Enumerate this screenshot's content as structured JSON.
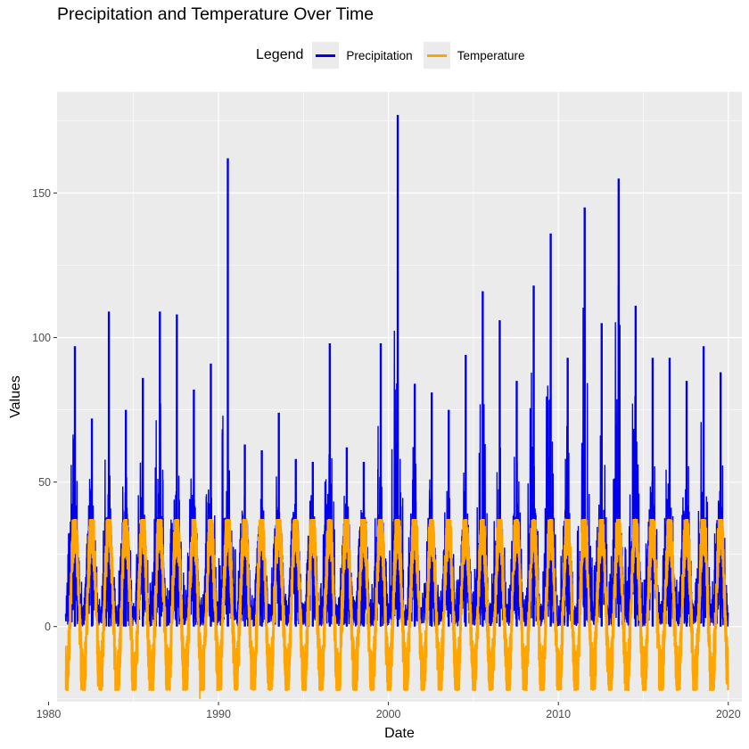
{
  "chart_data": {
    "type": "line",
    "title": "Precipitation and Temperature Over Time",
    "xlabel": "Date",
    "ylabel": "Values",
    "legend_title": "Legend",
    "legend_position": "top",
    "grid": true,
    "xlim": [
      1980.5,
      2020.8
    ],
    "ylim": [
      -26,
      185
    ],
    "x_ticks": [
      1980,
      1990,
      2000,
      2010,
      2020
    ],
    "y_ticks": [
      0,
      50,
      100,
      150
    ],
    "x_range": [
      1981.0,
      2020.0
    ],
    "series": [
      {
        "name": "Precipitation",
        "color": "#0000ee",
        "annual_peaks": [
          {
            "year": 1981,
            "peak": 97
          },
          {
            "year": 1982,
            "peak": 72
          },
          {
            "year": 1983,
            "peak": 109
          },
          {
            "year": 1984,
            "peak": 75
          },
          {
            "year": 1985,
            "peak": 86
          },
          {
            "year": 1986,
            "peak": 109
          },
          {
            "year": 1987,
            "peak": 108
          },
          {
            "year": 1988,
            "peak": 82
          },
          {
            "year": 1989,
            "peak": 91
          },
          {
            "year": 1990,
            "peak": 162
          },
          {
            "year": 1991,
            "peak": 63
          },
          {
            "year": 1992,
            "peak": 61
          },
          {
            "year": 1993,
            "peak": 74
          },
          {
            "year": 1994,
            "peak": 58
          },
          {
            "year": 1995,
            "peak": 57
          },
          {
            "year": 1996,
            "peak": 98
          },
          {
            "year": 1997,
            "peak": 62
          },
          {
            "year": 1998,
            "peak": 57
          },
          {
            "year": 1999,
            "peak": 98
          },
          {
            "year": 2000,
            "peak": 177
          },
          {
            "year": 2001,
            "peak": 84
          },
          {
            "year": 2002,
            "peak": 81
          },
          {
            "year": 2003,
            "peak": 75
          },
          {
            "year": 2004,
            "peak": 94
          },
          {
            "year": 2005,
            "peak": 116
          },
          {
            "year": 2006,
            "peak": 106
          },
          {
            "year": 2007,
            "peak": 85
          },
          {
            "year": 2008,
            "peak": 118
          },
          {
            "year": 2009,
            "peak": 136
          },
          {
            "year": 2010,
            "peak": 93
          },
          {
            "year": 2011,
            "peak": 145
          },
          {
            "year": 2012,
            "peak": 105
          },
          {
            "year": 2013,
            "peak": 155
          },
          {
            "year": 2014,
            "peak": 111
          },
          {
            "year": 2015,
            "peak": 93
          },
          {
            "year": 2016,
            "peak": 93
          },
          {
            "year": 2017,
            "peak": 85
          },
          {
            "year": 2018,
            "peak": 97
          },
          {
            "year": 2019,
            "peak": 88
          }
        ]
      },
      {
        "name": "Temperature",
        "color": "#ffa500",
        "annual_max": 37,
        "annual_min_approx": -20,
        "extreme_min": {
          "year": 1988.9,
          "value": -25
        }
      }
    ]
  }
}
